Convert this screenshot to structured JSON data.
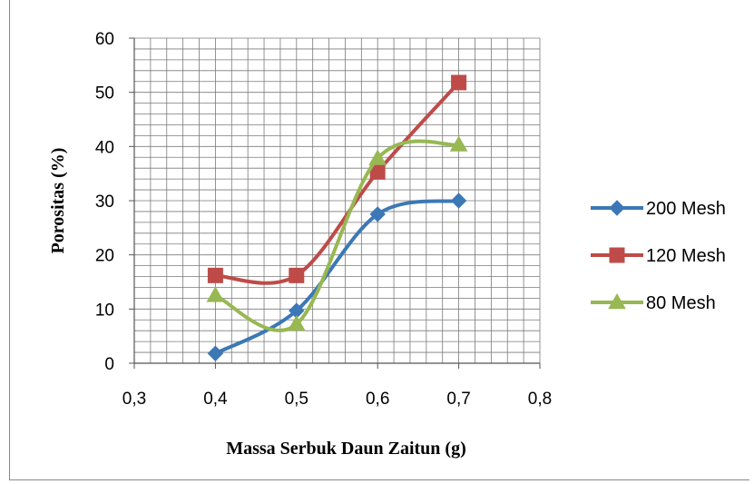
{
  "chart_data": {
    "type": "line",
    "title": "",
    "xlabel": "Massa Serbuk Daun Zaitun (g)",
    "ylabel": "Porositas (%)",
    "xlim": [
      0.3,
      0.8
    ],
    "ylim": [
      0,
      60
    ],
    "x_ticks": [
      "0,3",
      "0,4",
      "0,5",
      "0,6",
      "0,7",
      "0,8"
    ],
    "y_ticks": [
      "0",
      "10",
      "20",
      "30",
      "40",
      "50",
      "60"
    ],
    "grid": true,
    "smooth": true,
    "legend_position": "right",
    "x": [
      0.4,
      0.5,
      0.6,
      0.7
    ],
    "series": [
      {
        "name": "200 Mesh",
        "marker": "diamond",
        "color": "#3C78B5",
        "values": [
          1.8,
          9.7,
          27.5,
          30.0
        ]
      },
      {
        "name": "120 Mesh",
        "marker": "square",
        "color": "#BE4B48",
        "values": [
          16.2,
          16.2,
          35.3,
          51.8
        ]
      },
      {
        "name": "80 Mesh",
        "marker": "triangle",
        "color": "#97B853",
        "values": [
          12.5,
          7.2,
          37.8,
          40.3
        ]
      }
    ]
  }
}
